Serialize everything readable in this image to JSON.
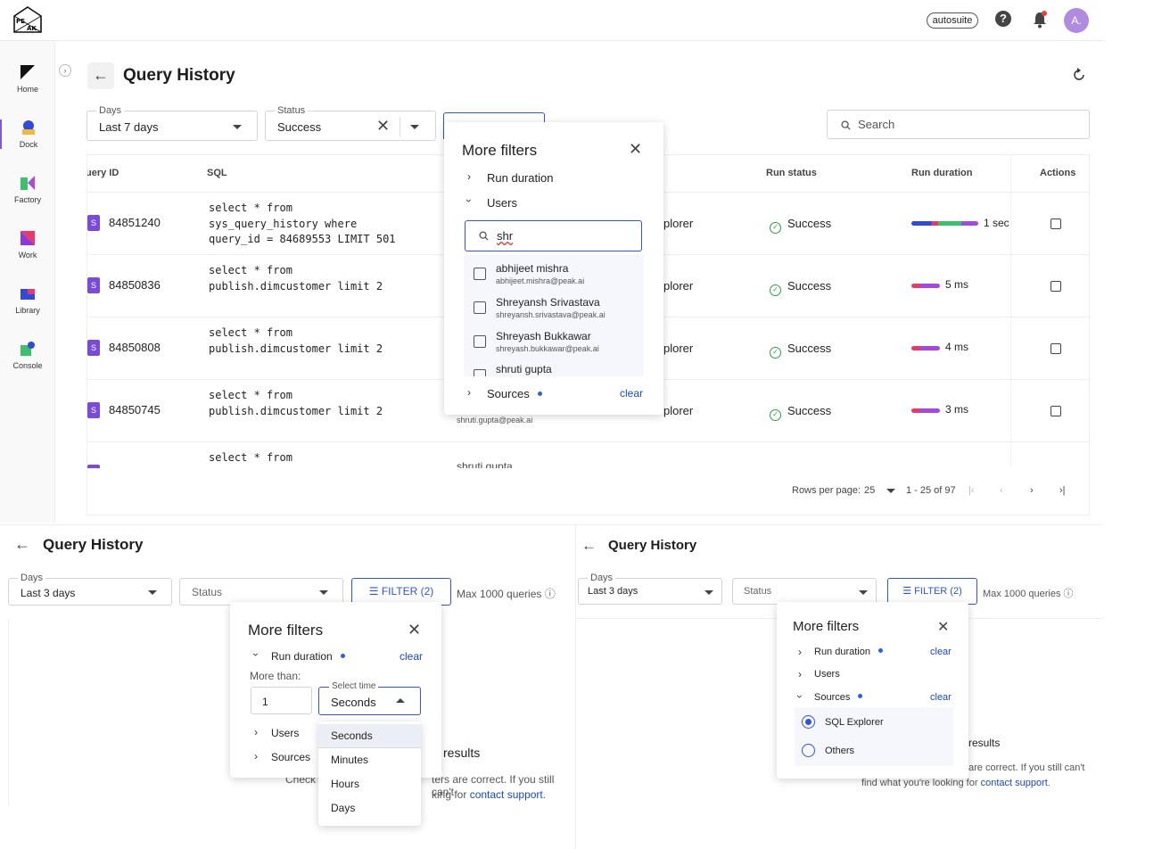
{
  "topbar": {
    "logo_text": "PEAK",
    "workspace_chip": "autosuite",
    "help_icon": "?",
    "avatar_initial": "A."
  },
  "sidebar": {
    "items": [
      {
        "label": "Home",
        "icon": "home-icon"
      },
      {
        "label": "Dock",
        "icon": "dock-icon"
      },
      {
        "label": "Factory",
        "icon": "factory-icon"
      },
      {
        "label": "Work",
        "icon": "work-icon"
      },
      {
        "label": "Library",
        "icon": "library-icon"
      },
      {
        "label": "Console",
        "icon": "console-icon"
      }
    ]
  },
  "header": {
    "title": "Query History"
  },
  "filters": {
    "days_label": "Days",
    "days_value": "Last 7 days",
    "status_label": "Status",
    "status_value": "Success",
    "search_placeholder": "Search"
  },
  "table": {
    "headers": {
      "query_id": "uery ID",
      "sql": "SQL",
      "run_status": "Run status",
      "run_duration": "Run duration",
      "actions": "Actions"
    },
    "rows": [
      {
        "id": "84851240",
        "sql": "select * from\nsys_query_history where\nquery_id = 84689553 LIMIT 501",
        "source": "plorer",
        "status": "Success",
        "duration": "1 sec"
      },
      {
        "id": "84850836",
        "sql": "select * from\npublish.dimcustomer limit 2",
        "source": "plorer",
        "status": "Success",
        "duration": "5 ms"
      },
      {
        "id": "84850808",
        "sql": "select * from\npublish.dimcustomer limit 2",
        "source": "plorer",
        "status": "Success",
        "duration": "4 ms"
      },
      {
        "id": "84850745",
        "sql": "select * from\npublish.dimcustomer limit 2",
        "source": "plorer",
        "status": "Success",
        "duration": "3 ms",
        "extra_user": "shruti.gupta@peak.ai"
      },
      {
        "sql": "select * from",
        "extra_user": "shruti gupta"
      }
    ],
    "pager": {
      "rows_per_page_label": "Rows per page:",
      "rows_per_page": "25",
      "range": "1 - 25 of 97"
    }
  },
  "more_filters_main": {
    "title": "More filters",
    "run_duration": "Run duration",
    "users": "Users",
    "search_value": "shr",
    "users_list": [
      {
        "name": "abhijeet mishra",
        "email": "abhijeet.mishra@peak.ai"
      },
      {
        "name": "Shreyansh Srivastava",
        "email": "shreyansh.srivastava@peak.ai"
      },
      {
        "name": "Shreyash Bukkawar",
        "email": "shreyash.bukkawar@peak.ai"
      },
      {
        "name": "shruti gupta",
        "email": ""
      }
    ],
    "sources": "Sources",
    "clear": "clear"
  },
  "panel_left": {
    "title": "Query History",
    "days_label": "Days",
    "days_value": "Last 3 days",
    "status_placeholder": "Status",
    "filter_btn": "FILTER (2)",
    "max_queries": "Max 1000 queries",
    "popup": {
      "title": "More filters",
      "run_duration": "Run duration",
      "clear": "clear",
      "more_than": "More than:",
      "amount": "1",
      "select_time_label": "Select time",
      "select_time_value": "Seconds",
      "users": "Users",
      "sources": "Sources",
      "options": [
        "Seconds",
        "Minutes",
        "Hours",
        "Days"
      ]
    },
    "empty_title": "results",
    "empty_text_1": "Check",
    "empty_text_2": "ters are correct. If you still can't",
    "empty_text_3": "king for",
    "contact": "contact support",
    "period": "."
  },
  "panel_right": {
    "title": "Query History",
    "days_label": "Days",
    "days_value": "Last 3 days",
    "status_placeholder": "Status",
    "filter_btn": "FILTER (2)",
    "max_queries": "Max 1000 queries",
    "popup": {
      "title": "More filters",
      "run_duration": "Run duration",
      "clear1": "clear",
      "users": "Users",
      "sources": "Sources",
      "clear2": "clear",
      "options": [
        "SQL Explorer",
        "Others"
      ]
    },
    "empty_title": "results",
    "empty_text_1": "are correct. If you still can't",
    "empty_text_2": "find what you're looking for",
    "contact": "contact support",
    "period": "."
  }
}
